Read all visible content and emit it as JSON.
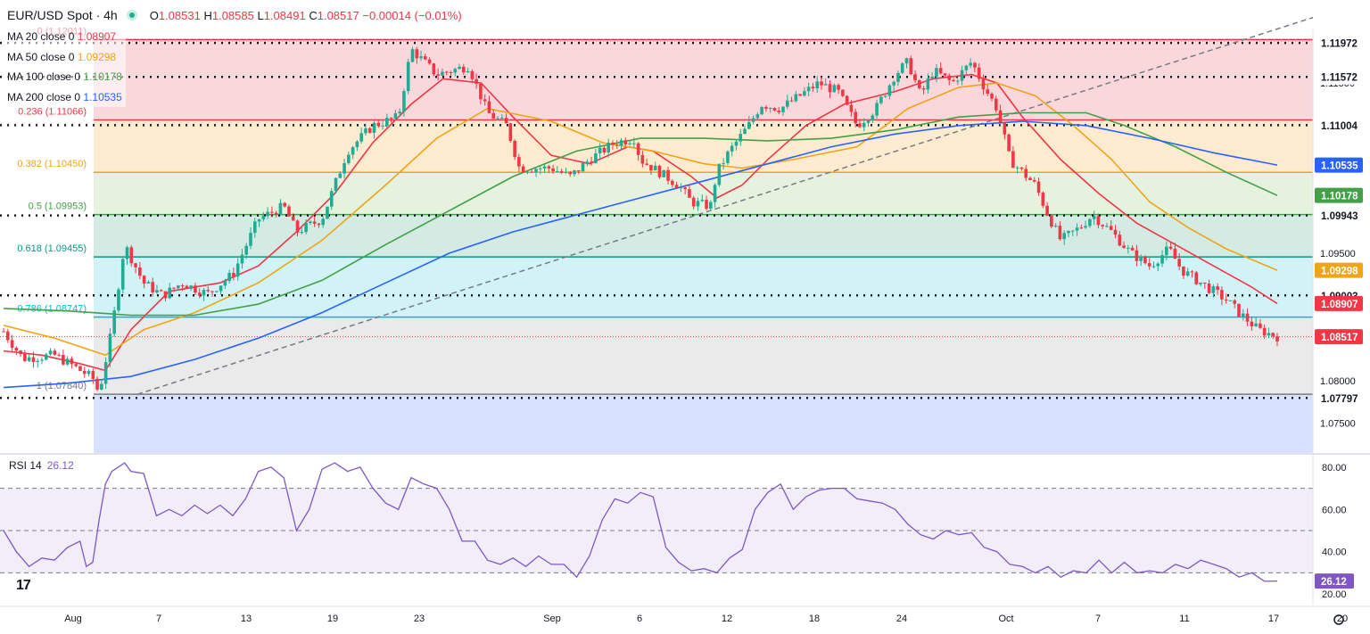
{
  "header": {
    "symbol": "EUR/USD Spot · 4h",
    "open": "1.08531",
    "high": "1.08585",
    "low": "1.08491",
    "close": "1.08517",
    "change": "−0.00014 (−0.01%)"
  },
  "ma_legend": [
    {
      "label": "MA 20 close 0",
      "value": "1.08907",
      "color": "#f23645"
    },
    {
      "label": "MA 50 close 0",
      "value": "1.09298",
      "color": "#f0a417"
    },
    {
      "label": "MA 100 close 0",
      "value": "1.10178",
      "color": "#43a047"
    },
    {
      "label": "MA 200 close 0",
      "value": "1.10535",
      "color": "#2962ff"
    }
  ],
  "rsi_legend": {
    "label": "RSI 14",
    "value": "26.12"
  },
  "colors": {
    "up": "#22ab94",
    "down": "#f23645",
    "ma20": "#f23645",
    "ma50": "#f0a417",
    "ma100": "#43a047",
    "ma200": "#2962ff",
    "rsi": "#7e57c2"
  },
  "chart_data": {
    "type": "candlestick",
    "x_ticks": [
      "Aug",
      "7",
      "13",
      "19",
      "23",
      "Sep",
      "6",
      "12",
      "18",
      "24",
      "Oct",
      "7",
      "11",
      "17",
      "20"
    ],
    "y_ticks": [
      "1.11500",
      "1.09500",
      "1.08000",
      "1.07500"
    ],
    "ylim": [
      1.0715,
      1.1213
    ],
    "fib_levels": [
      {
        "ratio": "0",
        "price": 1.12011,
        "label": "0 (1.12011)",
        "color": "#f23645"
      },
      {
        "ratio": "0.236",
        "price": 1.11066,
        "label": "0.236 (1.11066)",
        "color": "#f23645"
      },
      {
        "ratio": "0.382",
        "price": 1.1045,
        "label": "0.382 (1.10450)",
        "color": "#f0a417"
      },
      {
        "ratio": "0.5",
        "price": 1.09953,
        "label": "0.5 (1.09953)",
        "color": "#43a047"
      },
      {
        "ratio": "0.618",
        "price": 1.09455,
        "label": "0.618 (1.09455)",
        "color": "#089981"
      },
      {
        "ratio": "0.786",
        "price": 1.08747,
        "label": "0.786 (1.08747)",
        "color": "#00bcd4"
      },
      {
        "ratio": "1",
        "price": 1.0784,
        "label": "1 (1.07840)",
        "color": "#787b86"
      }
    ],
    "horizontal_levels": [
      1.11972,
      1.11572,
      1.11004,
      1.09943,
      1.09003,
      1.07797
    ],
    "price_labels": [
      {
        "value": "1.11972",
        "color": "#131722"
      },
      {
        "value": "1.11572",
        "color": "#131722"
      },
      {
        "value": "1.11004",
        "color": "#131722"
      },
      {
        "value": "1.10535",
        "color": "#2962ff"
      },
      {
        "value": "1.10178",
        "color": "#43a047"
      },
      {
        "value": "1.09943",
        "color": "#131722"
      },
      {
        "value": "1.09298",
        "color": "#f0a417"
      },
      {
        "value": "1.09003",
        "color": "#131722"
      },
      {
        "value": "1.08907",
        "color": "#f23645"
      },
      {
        "value": "1.08517",
        "color": "#f23645"
      },
      {
        "value": "1.07797",
        "color": "#131722"
      }
    ],
    "last_price": 1.08517,
    "trendline": {
      "from": [
        0.105,
        1.0784
      ],
      "to": [
        1.0,
        1.1227
      ]
    },
    "price_path": [
      [
        0.0,
        1.0858
      ],
      [
        0.015,
        1.0826
      ],
      [
        0.04,
        1.083
      ],
      [
        0.055,
        1.0817
      ],
      [
        0.07,
        1.0803
      ],
      [
        0.075,
        1.0785
      ],
      [
        0.085,
        1.086
      ],
      [
        0.095,
        1.096
      ],
      [
        0.11,
        1.0915
      ],
      [
        0.125,
        1.09
      ],
      [
        0.14,
        1.0915
      ],
      [
        0.16,
        1.0902
      ],
      [
        0.18,
        1.0925
      ],
      [
        0.2,
        1.099
      ],
      [
        0.22,
        1.1005
      ],
      [
        0.23,
        1.0975
      ],
      [
        0.25,
        1.099
      ],
      [
        0.27,
        1.107
      ],
      [
        0.29,
        1.11
      ],
      [
        0.31,
        1.111
      ],
      [
        0.32,
        1.119
      ],
      [
        0.34,
        1.116
      ],
      [
        0.365,
        1.117
      ],
      [
        0.38,
        1.1115
      ],
      [
        0.395,
        1.11
      ],
      [
        0.405,
        1.105
      ],
      [
        0.43,
        1.105
      ],
      [
        0.445,
        1.104
      ],
      [
        0.46,
        1.106
      ],
      [
        0.48,
        1.108
      ],
      [
        0.495,
        1.1085
      ],
      [
        0.5,
        1.106
      ],
      [
        0.51,
        1.105
      ],
      [
        0.53,
        1.103
      ],
      [
        0.54,
        1.101
      ],
      [
        0.555,
        1.1005
      ],
      [
        0.56,
        1.1045
      ],
      [
        0.57,
        1.107
      ],
      [
        0.585,
        1.11
      ],
      [
        0.595,
        1.1125
      ],
      [
        0.61,
        1.112
      ],
      [
        0.625,
        1.1135
      ],
      [
        0.64,
        1.115
      ],
      [
        0.655,
        1.114
      ],
      [
        0.67,
        1.11
      ],
      [
        0.685,
        1.112
      ],
      [
        0.7,
        1.116
      ],
      [
        0.71,
        1.1175
      ],
      [
        0.72,
        1.1135
      ],
      [
        0.73,
        1.1165
      ],
      [
        0.745,
        1.115
      ],
      [
        0.76,
        1.1175
      ],
      [
        0.77,
        1.1145
      ],
      [
        0.78,
        1.112
      ],
      [
        0.79,
        1.106
      ],
      [
        0.8,
        1.1045
      ],
      [
        0.81,
        1.103
      ],
      [
        0.82,
        1.0995
      ],
      [
        0.83,
        1.0965
      ],
      [
        0.845,
        1.098
      ],
      [
        0.855,
        1.0995
      ],
      [
        0.87,
        1.0975
      ],
      [
        0.885,
        1.095
      ],
      [
        0.9,
        1.0935
      ],
      [
        0.915,
        1.0955
      ],
      [
        0.925,
        1.093
      ],
      [
        0.94,
        1.0915
      ],
      [
        0.95,
        1.0905
      ],
      [
        0.96,
        1.0895
      ],
      [
        0.97,
        1.088
      ],
      [
        0.985,
        1.086
      ],
      [
        1.0,
        1.0852
      ]
    ],
    "moving_averages": [
      {
        "name": "MA 20",
        "color": "#f23645",
        "points": [
          [
            0.0,
            1.0835
          ],
          [
            0.03,
            1.083
          ],
          [
            0.06,
            1.082
          ],
          [
            0.08,
            1.0812
          ],
          [
            0.1,
            1.086
          ],
          [
            0.13,
            1.0905
          ],
          [
            0.17,
            1.0915
          ],
          [
            0.2,
            1.0935
          ],
          [
            0.23,
            1.0975
          ],
          [
            0.26,
            1.102
          ],
          [
            0.29,
            1.108
          ],
          [
            0.32,
            1.1125
          ],
          [
            0.345,
            1.1155
          ],
          [
            0.375,
            1.115
          ],
          [
            0.4,
            1.111
          ],
          [
            0.43,
            1.1065
          ],
          [
            0.46,
            1.1055
          ],
          [
            0.49,
            1.1075
          ],
          [
            0.51,
            1.107
          ],
          [
            0.54,
            1.104
          ],
          [
            0.56,
            1.1015
          ],
          [
            0.58,
            1.103
          ],
          [
            0.6,
            1.106
          ],
          [
            0.63,
            1.11
          ],
          [
            0.66,
            1.1125
          ],
          [
            0.7,
            1.114
          ],
          [
            0.73,
            1.1155
          ],
          [
            0.76,
            1.116
          ],
          [
            0.78,
            1.115
          ],
          [
            0.8,
            1.111
          ],
          [
            0.83,
            1.106
          ],
          [
            0.86,
            1.102
          ],
          [
            0.89,
            1.0985
          ],
          [
            0.92,
            1.096
          ],
          [
            0.95,
            1.0935
          ],
          [
            0.98,
            1.091
          ],
          [
            1.0,
            1.08907
          ]
        ]
      },
      {
        "name": "MA 50",
        "color": "#f0a417",
        "points": [
          [
            0.0,
            1.0865
          ],
          [
            0.04,
            1.085
          ],
          [
            0.08,
            1.083
          ],
          [
            0.11,
            1.086
          ],
          [
            0.15,
            1.088
          ],
          [
            0.2,
            1.0915
          ],
          [
            0.25,
            1.0965
          ],
          [
            0.3,
            1.103
          ],
          [
            0.34,
            1.1085
          ],
          [
            0.38,
            1.112
          ],
          [
            0.43,
            1.1105
          ],
          [
            0.47,
            1.108
          ],
          [
            0.51,
            1.107
          ],
          [
            0.55,
            1.1055
          ],
          [
            0.58,
            1.105
          ],
          [
            0.62,
            1.106
          ],
          [
            0.67,
            1.1075
          ],
          [
            0.71,
            1.112
          ],
          [
            0.75,
            1.1145
          ],
          [
            0.78,
            1.115
          ],
          [
            0.81,
            1.1135
          ],
          [
            0.84,
            1.11
          ],
          [
            0.87,
            1.106
          ],
          [
            0.9,
            1.101
          ],
          [
            0.93,
            1.098
          ],
          [
            0.96,
            1.0955
          ],
          [
            1.0,
            1.09298
          ]
        ]
      },
      {
        "name": "MA 100",
        "color": "#43a047",
        "points": [
          [
            0.0,
            1.0885
          ],
          [
            0.05,
            1.0882
          ],
          [
            0.1,
            1.0877
          ],
          [
            0.15,
            1.0877
          ],
          [
            0.2,
            1.089
          ],
          [
            0.25,
            1.0918
          ],
          [
            0.3,
            1.096
          ],
          [
            0.35,
            1.1
          ],
          [
            0.4,
            1.104
          ],
          [
            0.45,
            1.107
          ],
          [
            0.5,
            1.1085
          ],
          [
            0.55,
            1.1085
          ],
          [
            0.6,
            1.1082
          ],
          [
            0.65,
            1.1085
          ],
          [
            0.7,
            1.1095
          ],
          [
            0.75,
            1.111
          ],
          [
            0.8,
            1.1115
          ],
          [
            0.85,
            1.1115
          ],
          [
            0.88,
            1.11
          ],
          [
            0.92,
            1.1075
          ],
          [
            0.96,
            1.1045
          ],
          [
            1.0,
            1.10178
          ]
        ]
      },
      {
        "name": "MA 200",
        "color": "#2962ff",
        "points": [
          [
            0.0,
            1.0792
          ],
          [
            0.05,
            1.0797
          ],
          [
            0.1,
            1.0805
          ],
          [
            0.15,
            1.0825
          ],
          [
            0.2,
            1.085
          ],
          [
            0.25,
            1.088
          ],
          [
            0.3,
            1.0915
          ],
          [
            0.35,
            1.095
          ],
          [
            0.4,
            1.0975
          ],
          [
            0.45,
            1.0995
          ],
          [
            0.5,
            1.1015
          ],
          [
            0.55,
            1.1035
          ],
          [
            0.6,
            1.1055
          ],
          [
            0.65,
            1.1075
          ],
          [
            0.7,
            1.109
          ],
          [
            0.75,
            1.11
          ],
          [
            0.8,
            1.1105
          ],
          [
            0.85,
            1.11
          ],
          [
            0.9,
            1.1085
          ],
          [
            0.95,
            1.1068
          ],
          [
            1.0,
            1.10535
          ]
        ]
      }
    ],
    "rsi": {
      "ylim": [
        15,
        85
      ],
      "levels": [
        70,
        50,
        30
      ],
      "y_ticks": [
        "80.00",
        "60.00",
        "40.00",
        "20.00"
      ],
      "current": 26.12,
      "points": [
        [
          0.0,
          50
        ],
        [
          0.01,
          40
        ],
        [
          0.02,
          33
        ],
        [
          0.03,
          37
        ],
        [
          0.04,
          36
        ],
        [
          0.05,
          42
        ],
        [
          0.06,
          45
        ],
        [
          0.065,
          33
        ],
        [
          0.07,
          35
        ],
        [
          0.075,
          55
        ],
        [
          0.08,
          72
        ],
        [
          0.085,
          78
        ],
        [
          0.095,
          82
        ],
        [
          0.1,
          78
        ],
        [
          0.11,
          77
        ],
        [
          0.12,
          57
        ],
        [
          0.13,
          60
        ],
        [
          0.14,
          57
        ],
        [
          0.15,
          62
        ],
        [
          0.16,
          58
        ],
        [
          0.17,
          62
        ],
        [
          0.18,
          57
        ],
        [
          0.19,
          65
        ],
        [
          0.2,
          78
        ],
        [
          0.21,
          80
        ],
        [
          0.22,
          75
        ],
        [
          0.23,
          50
        ],
        [
          0.24,
          60
        ],
        [
          0.25,
          79
        ],
        [
          0.26,
          82
        ],
        [
          0.27,
          78
        ],
        [
          0.28,
          80
        ],
        [
          0.29,
          70
        ],
        [
          0.3,
          63
        ],
        [
          0.31,
          60
        ],
        [
          0.32,
          75
        ],
        [
          0.33,
          72
        ],
        [
          0.34,
          70
        ],
        [
          0.35,
          60
        ],
        [
          0.36,
          45
        ],
        [
          0.37,
          45
        ],
        [
          0.38,
          36
        ],
        [
          0.39,
          34
        ],
        [
          0.4,
          37
        ],
        [
          0.41,
          33
        ],
        [
          0.42,
          38
        ],
        [
          0.43,
          34
        ],
        [
          0.44,
          34
        ],
        [
          0.45,
          28
        ],
        [
          0.46,
          38
        ],
        [
          0.47,
          55
        ],
        [
          0.48,
          65
        ],
        [
          0.49,
          63
        ],
        [
          0.5,
          68
        ],
        [
          0.51,
          66
        ],
        [
          0.52,
          42
        ],
        [
          0.53,
          35
        ],
        [
          0.54,
          31
        ],
        [
          0.55,
          32
        ],
        [
          0.56,
          30
        ],
        [
          0.57,
          37
        ],
        [
          0.58,
          41
        ],
        [
          0.59,
          60
        ],
        [
          0.6,
          68
        ],
        [
          0.61,
          72
        ],
        [
          0.62,
          60
        ],
        [
          0.63,
          66
        ],
        [
          0.64,
          69
        ],
        [
          0.65,
          70
        ],
        [
          0.66,
          70
        ],
        [
          0.67,
          65
        ],
        [
          0.68,
          64
        ],
        [
          0.69,
          63
        ],
        [
          0.7,
          60
        ],
        [
          0.71,
          53
        ],
        [
          0.72,
          48
        ],
        [
          0.73,
          46
        ],
        [
          0.74,
          50
        ],
        [
          0.75,
          48
        ],
        [
          0.76,
          49
        ],
        [
          0.77,
          42
        ],
        [
          0.78,
          40
        ],
        [
          0.79,
          34
        ],
        [
          0.8,
          33
        ],
        [
          0.81,
          30
        ],
        [
          0.82,
          33
        ],
        [
          0.83,
          28
        ],
        [
          0.84,
          31
        ],
        [
          0.85,
          30
        ],
        [
          0.86,
          36
        ],
        [
          0.87,
          30
        ],
        [
          0.88,
          35
        ],
        [
          0.89,
          30
        ],
        [
          0.9,
          31
        ],
        [
          0.91,
          30
        ],
        [
          0.92,
          34
        ],
        [
          0.93,
          32
        ],
        [
          0.94,
          36
        ],
        [
          0.95,
          34
        ],
        [
          0.96,
          32
        ],
        [
          0.97,
          28
        ],
        [
          0.98,
          30
        ],
        [
          0.99,
          26
        ],
        [
          1.0,
          26.12
        ]
      ]
    }
  }
}
